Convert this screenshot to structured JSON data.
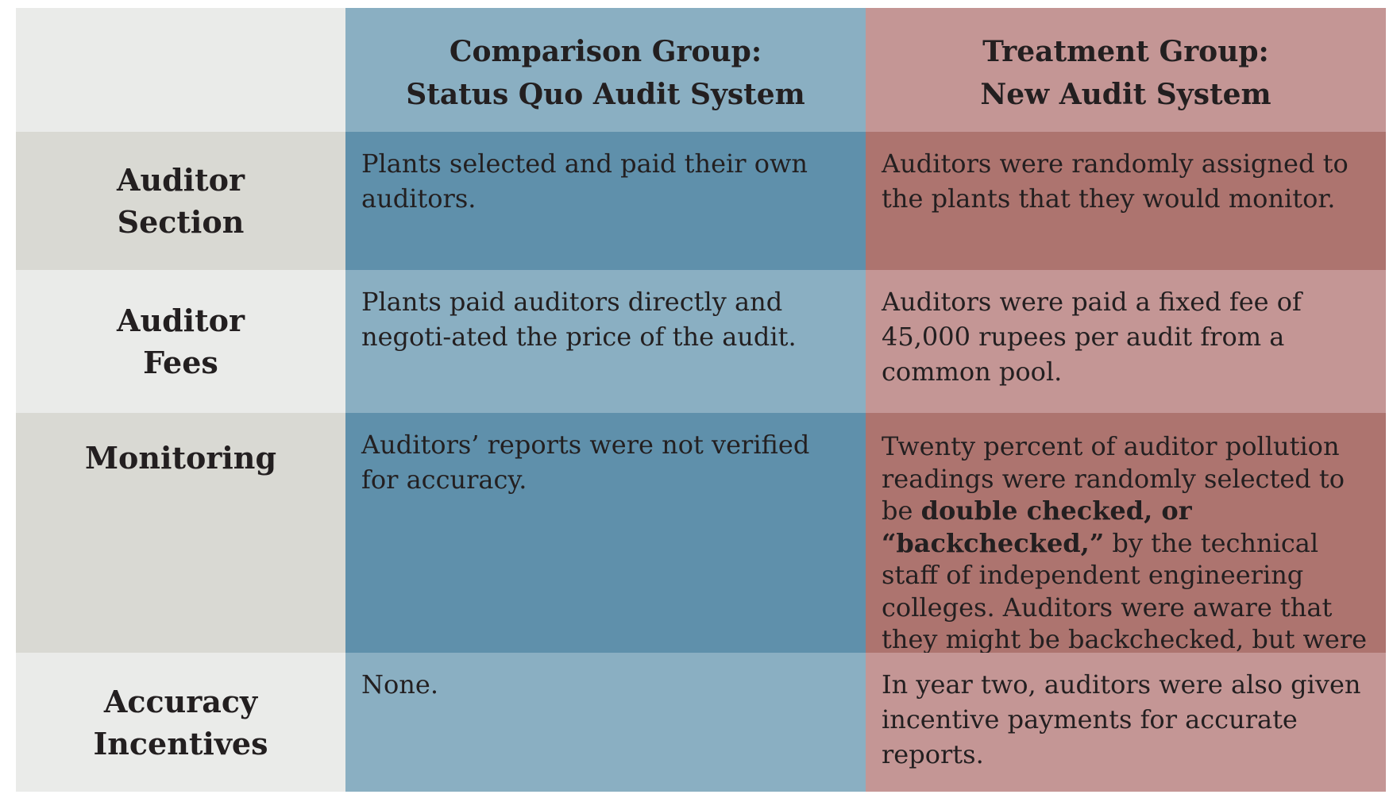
{
  "header": {
    "comparison": {
      "line1": "Comparison Group:",
      "line2": "Status Quo Audit System"
    },
    "treatment": {
      "line1": "Treatment Group:",
      "line2": "New Audit System"
    }
  },
  "rows": [
    {
      "label_line1": "Auditor",
      "label_line2": "Section",
      "comparison": "Plants selected and paid their own auditors.",
      "treatment": "Auditors were randomly assigned to the plants that they would monitor."
    },
    {
      "label_line1": "Auditor",
      "label_line2": "Fees",
      "comparison": "Plants paid auditors directly and negoti-ated the price of the audit.",
      "treatment": "Auditors were paid a fixed fee of 45,000 rupees per audit from a common pool."
    },
    {
      "label_line1": "Monitoring",
      "comparison": "Auditors’ reports were not verified for accuracy.",
      "treatment_before": "Twenty percent of auditor pollution readings were randomly selected to be",
      "treatment_bold": "double checked, or “backchecked,”",
      "treatment_after": "by the technical staff of independent engineering colleges. Auditors were aware that they might be backchecked, but were not told when."
    },
    {
      "label_line1": "Accuracy",
      "label_line2": "Incentives",
      "comparison": "None.",
      "treatment": "In year two, auditors were also given incentive payments for accurate reports."
    }
  ],
  "colors": {
    "corner": "#eaebe9",
    "label_dark": "#d9d9d3",
    "label_light": "#eaebe9",
    "blue_dark": "#5f90ab",
    "blue_light": "#8aafc2",
    "red_dark": "#ad746f",
    "red_light": "#c49695",
    "text": "#231f20"
  }
}
